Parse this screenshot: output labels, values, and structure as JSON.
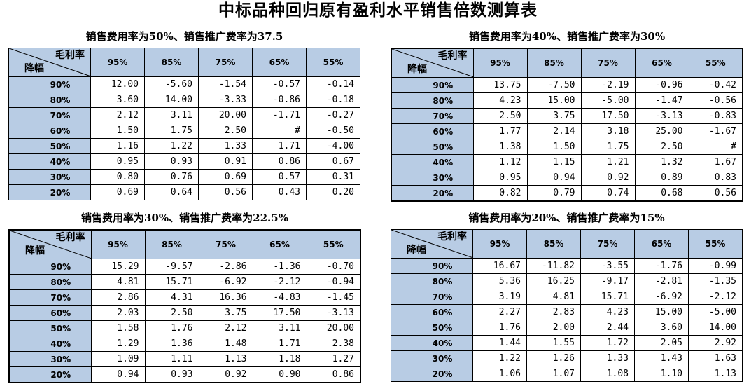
{
  "title": "中标品种回归原有盈利水平销售倍数测算表",
  "corner": {
    "top": "毛利率",
    "bottom": "降幅"
  },
  "columns": [
    "95%",
    "85%",
    "75%",
    "65%",
    "55%"
  ],
  "rows": [
    "90%",
    "80%",
    "70%",
    "60%",
    "50%",
    "40%",
    "30%",
    "20%"
  ],
  "tables": [
    {
      "title": "销售费用率为50%、销售推广费率为37.5",
      "values": [
        [
          "12.00",
          "-5.60",
          "-1.54",
          "-0.57",
          "-0.14"
        ],
        [
          "3.60",
          "14.00",
          "-3.33",
          "-0.86",
          "-0.18"
        ],
        [
          "2.12",
          "3.11",
          "20.00",
          "-1.71",
          "-0.27"
        ],
        [
          "1.50",
          "1.75",
          "2.50",
          "#",
          "-0.50"
        ],
        [
          "1.16",
          "1.22",
          "1.33",
          "1.71",
          "-4.00"
        ],
        [
          "0.95",
          "0.93",
          "0.91",
          "0.86",
          "0.67"
        ],
        [
          "0.80",
          "0.76",
          "0.69",
          "0.57",
          "0.31"
        ],
        [
          "0.69",
          "0.64",
          "0.56",
          "0.43",
          "0.20"
        ]
      ]
    },
    {
      "title": "销售费用率为40%、销售推广费率为30%",
      "values": [
        [
          "13.75",
          "-7.50",
          "-2.19",
          "-0.96",
          "-0.42"
        ],
        [
          "4.23",
          "15.00",
          "-5.00",
          "-1.47",
          "-0.56"
        ],
        [
          "2.50",
          "3.75",
          "17.50",
          "-3.13",
          "-0.83"
        ],
        [
          "1.77",
          "2.14",
          "3.18",
          "25.00",
          "-1.67"
        ],
        [
          "1.38",
          "1.50",
          "1.75",
          "2.50",
          "#"
        ],
        [
          "1.12",
          "1.15",
          "1.21",
          "1.32",
          "1.67"
        ],
        [
          "0.95",
          "0.94",
          "0.92",
          "0.89",
          "0.83"
        ],
        [
          "0.82",
          "0.79",
          "0.74",
          "0.68",
          "0.56"
        ]
      ]
    },
    {
      "title": "销售费用率为30%、销售推广费率为22.5%",
      "values": [
        [
          "15.29",
          "-9.57",
          "-2.86",
          "-1.36",
          "-0.70"
        ],
        [
          "4.81",
          "15.71",
          "-6.92",
          "-2.12",
          "-0.94"
        ],
        [
          "2.86",
          "4.31",
          "16.36",
          "-4.83",
          "-1.45"
        ],
        [
          "2.03",
          "2.50",
          "3.75",
          "17.50",
          "-3.13"
        ],
        [
          "1.58",
          "1.76",
          "2.12",
          "3.11",
          "20.00"
        ],
        [
          "1.29",
          "1.36",
          "1.48",
          "1.71",
          "2.38"
        ],
        [
          "1.09",
          "1.11",
          "1.13",
          "1.18",
          "1.27"
        ],
        [
          "0.94",
          "0.93",
          "0.92",
          "0.90",
          "0.86"
        ]
      ]
    },
    {
      "title": "销售费用率为20%、销售推广费率为15%",
      "values": [
        [
          "16.67",
          "-11.82",
          "-3.55",
          "-1.76",
          "-0.99"
        ],
        [
          "5.36",
          "16.25",
          "-9.17",
          "-2.81",
          "-1.35"
        ],
        [
          "3.19",
          "4.81",
          "15.71",
          "-6.92",
          "-2.12"
        ],
        [
          "2.27",
          "2.83",
          "4.23",
          "15.00",
          "-5.00"
        ],
        [
          "1.76",
          "2.00",
          "2.44",
          "3.60",
          "14.00"
        ],
        [
          "1.44",
          "1.55",
          "1.72",
          "2.05",
          "2.92"
        ],
        [
          "1.22",
          "1.26",
          "1.33",
          "1.43",
          "1.63"
        ],
        [
          "1.06",
          "1.07",
          "1.08",
          "1.10",
          "1.13"
        ]
      ]
    }
  ],
  "header_color": "#b8cce4"
}
